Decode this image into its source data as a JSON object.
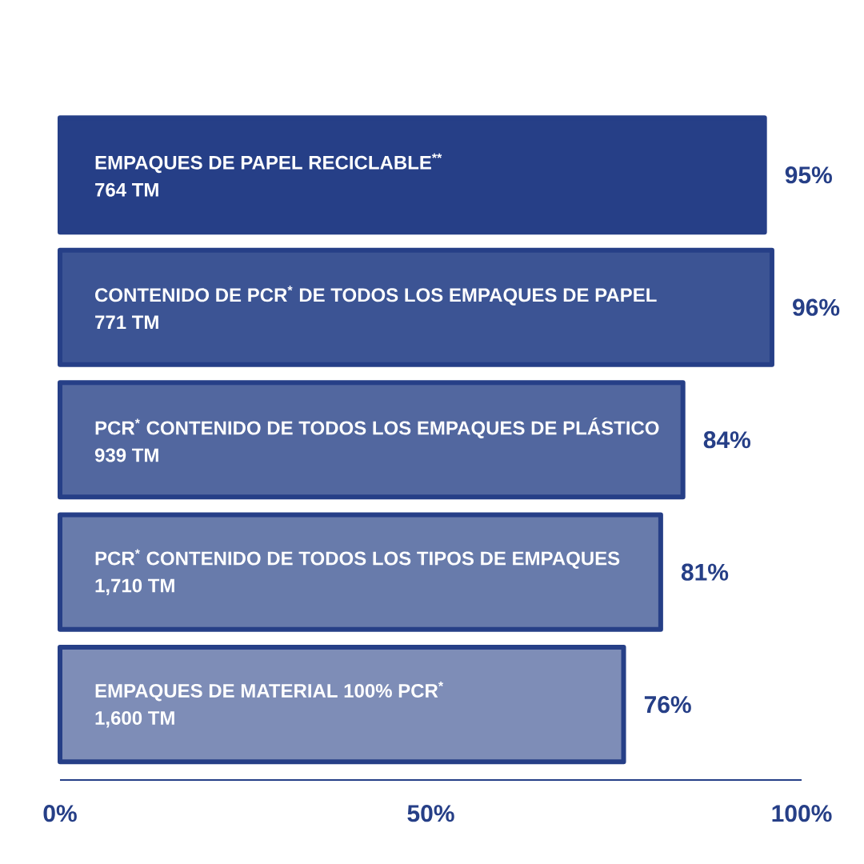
{
  "chart_data": {
    "type": "bar",
    "orientation": "horizontal",
    "categories": [
      "EMPAQUES DE PAPEL RECICLABLE$^{**}$",
      "CONTENIDO DE PCR$^{*}$ DE TODOS LOS EMPAQUES DE PAPEL",
      "PCR$^{*}$ CONTENIDO DE TODOS LOS EMPAQUES DE PLÁSTICO",
      "PCR$^{*}$ CONTENIDO DE TODOS LOS TIPOS DE EMPAQUES",
      "EMPAQUES DE MATERIAL 100% PCR$^{*}$"
    ],
    "annotations": [
      "764 TM",
      "771 TM",
      "939 TM",
      "1,710 TM",
      "1,600 TM"
    ],
    "values": [
      95,
      96,
      84,
      81,
      76
    ],
    "value_labels": [
      "95%",
      "96%",
      "84%",
      "81%",
      "76%"
    ],
    "color": "#263f87",
    "colors": [
      "#263f87",
      "#3c5494",
      "#52679f",
      "#687bab",
      "#7e8db7"
    ],
    "xlim": [
      0,
      100
    ],
    "xticks": [
      {
        "value": 0,
        "label": "0%"
      },
      {
        "value": 50,
        "label": "50%"
      },
      {
        "value": 100,
        "label": "100%"
      }
    ]
  }
}
